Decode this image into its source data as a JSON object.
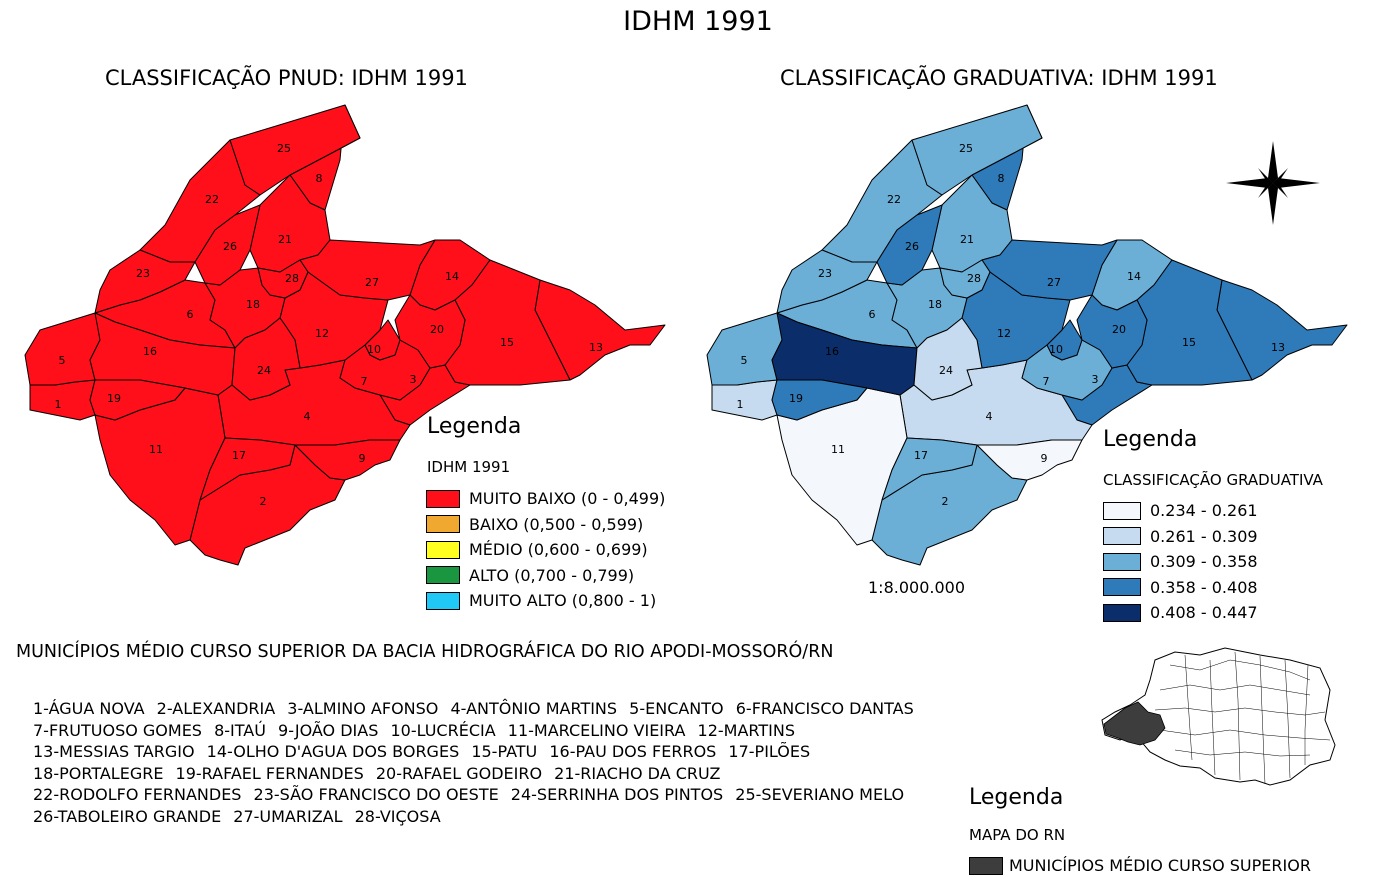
{
  "title": "IDHM 1991",
  "left_map": {
    "title": "CLASSIFICAÇÃO PNUD: IDHM 1991",
    "fill_color": "#ff0f1a",
    "legend": {
      "heading": "Legenda",
      "subtitle": "IDHM 1991",
      "items": [
        {
          "label": "MUITO BAIXO (0 - 0,499)",
          "color": "#ff0f1a"
        },
        {
          "label": "BAIXO (0,500 - 0,599)",
          "color": "#f0a830"
        },
        {
          "label": "MÉDIO (0,600 - 0,699)",
          "color": "#ffff20"
        },
        {
          "label": "ALTO (0,700 - 0,799)",
          "color": "#1a9641"
        },
        {
          "label": "MUITO ALTO (0,800 - 1)",
          "color": "#1fc8f5"
        }
      ]
    }
  },
  "right_map": {
    "title": "CLASSIFICAÇÃO GRADUATIVA: IDHM 1991",
    "scale": "1:8.000.000",
    "legend": {
      "heading": "Legenda",
      "subtitle": "CLASSIFICAÇÃO GRADUATIVA",
      "items": [
        {
          "label": "0.234 - 0.261",
          "color": "#f4f8fd"
        },
        {
          "label": "0.261 - 0.309",
          "color": "#c6dbef"
        },
        {
          "label": "0.309 - 0.358",
          "color": "#6baed6"
        },
        {
          "label": "0.358 - 0.408",
          "color": "#2f7ab9"
        },
        {
          "label": "0.408 - 0.447",
          "color": "#0b2e6a"
        }
      ]
    },
    "class_by_municipality": {
      "1": 1,
      "2": 2,
      "3": 3,
      "4": 1,
      "5": 2,
      "6": 2,
      "7": 2,
      "8": 3,
      "9": 0,
      "10": 3,
      "11": 0,
      "12": 3,
      "13": 3,
      "14": 2,
      "15": 3,
      "16": 4,
      "17": 2,
      "18": 2,
      "19": 3,
      "20": 3,
      "21": 2,
      "22": 2,
      "23": 2,
      "24": 1,
      "25": 2,
      "26": 3,
      "27": 3,
      "28": 2
    }
  },
  "section_title": "MUNICÍPIOS MÉDIO CURSO SUPERIOR DA BACIA HIDROGRÁFICA DO RIO APODI-MOSSORÓ/RN",
  "municipalities": [
    "1-ÁGUA NOVA",
    "2-ALEXANDRIA",
    "3-ALMINO AFONSO",
    "4-ANTÔNIO MARTINS",
    "5-ENCANTO",
    "6-FRANCISCO DANTAS",
    "7-FRUTUOSO GOMES",
    "8-ITAÚ",
    "9-JOÃO DIAS",
    "10-LUCRÉCIA",
    "11-MARCELINO VIEIRA",
    "12-MARTINS",
    "13-MESSIAS TARGIO",
    "14-OLHO D'AGUA DOS BORGES",
    "15-PATU",
    "16-PAU DOS FERROS",
    "17-PILÕES",
    "18-PORTALEGRE",
    "19-RAFAEL FERNANDES",
    "20-RAFAEL GODEIRO",
    "21-RIACHO DA CRUZ",
    "22-RODOLFO FERNANDES",
    "23-SÃO FRANCISCO DO OESTE",
    "24-SERRINHA DOS PINTOS",
    "25-SEVERIANO MELO",
    "26-TABOLEIRO GRANDE",
    "27-UMARIZAL",
    "28-VIÇOSA"
  ],
  "locator": {
    "heading": "Legenda",
    "subtitle": "MAPA DO RN",
    "item_label": "MUNICÍPIOS MÉDIO CURSO SUPERIOR",
    "item_color": "#3d3d3d"
  }
}
